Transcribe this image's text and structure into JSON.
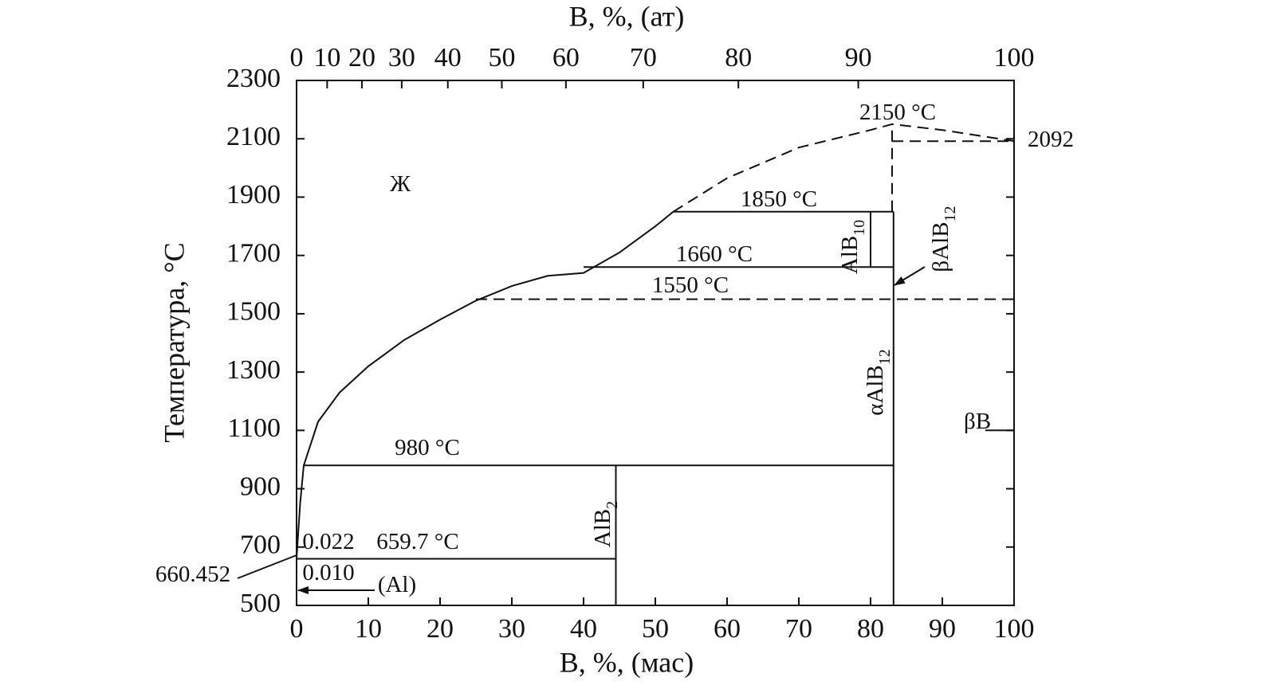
{
  "chart_data": {
    "type": "line",
    "xlabel": "B, %, (мас)",
    "x2label": "B, %, (ат)",
    "ylabel": "Температура, °С",
    "xlim": [
      0,
      100
    ],
    "xticks": [
      0,
      10,
      20,
      30,
      40,
      50,
      60,
      70,
      80,
      90,
      100
    ],
    "x2ticks": [
      0,
      10,
      20,
      30,
      40,
      50,
      60,
      70,
      80,
      90,
      100
    ],
    "ylim": [
      500,
      2300
    ],
    "yticks": [
      500,
      700,
      900,
      1100,
      1300,
      1500,
      1700,
      1900,
      2100,
      2300
    ],
    "color": "#111111",
    "lines": [
      {
        "style": "solid",
        "x": [
          0,
          0.5,
          1,
          3,
          6,
          10,
          15,
          20,
          25,
          30,
          35,
          40,
          45,
          50,
          52.5
        ],
        "y": [
          660.452,
          850,
          980,
          1130,
          1230,
          1320,
          1410,
          1480,
          1545,
          1595,
          1630,
          1640,
          1710,
          1800,
          1850
        ]
      },
      {
        "style": "dashed",
        "x": [
          52.5,
          60,
          70,
          80,
          83,
          90,
          100
        ],
        "y": [
          1850,
          1965,
          2070,
          2130,
          2150,
          2130,
          2092
        ]
      },
      {
        "style": "solid",
        "x": [
          1,
          83.2
        ],
        "y": [
          980,
          980
        ]
      },
      {
        "style": "solid",
        "x": [
          0,
          44.5
        ],
        "y": [
          659.7,
          659.7
        ]
      },
      {
        "style": "solid",
        "x": [
          44.5,
          44.5
        ],
        "y": [
          500,
          980
        ]
      },
      {
        "style": "solid",
        "x": [
          83.2,
          83.2
        ],
        "y": [
          500,
          1850
        ]
      },
      {
        "style": "solid",
        "x": [
          40,
          83.2
        ],
        "y": [
          1660,
          1660
        ]
      },
      {
        "style": "solid",
        "x": [
          52.5,
          83.2
        ],
        "y": [
          1850,
          1850
        ]
      },
      {
        "style": "solid",
        "x": [
          80,
          80
        ],
        "y": [
          1660,
          1850
        ]
      },
      {
        "style": "dashed",
        "x": [
          25,
          100
        ],
        "y": [
          1550,
          1550
        ]
      },
      {
        "style": "dashed",
        "x": [
          83,
          83
        ],
        "y": [
          1850,
          2150
        ]
      },
      {
        "style": "dashed",
        "x": [
          83,
          100
        ],
        "y": [
          2092,
          2092
        ]
      },
      {
        "style": "solid",
        "x": [
          96,
          100
        ],
        "y": [
          1100,
          1100
        ]
      }
    ],
    "annotations": [
      {
        "text": "Ж"
      },
      {
        "text": "2150 °C"
      },
      {
        "text": "2092"
      },
      {
        "text": "1850 °C"
      },
      {
        "text": "1660 °C"
      },
      {
        "text": "1550 °C"
      },
      {
        "text": "980 °C"
      },
      {
        "text": "0.022"
      },
      {
        "text": "659.7 °C"
      },
      {
        "text": "0.010"
      },
      {
        "text": "(Al)"
      },
      {
        "text": "660.452"
      },
      {
        "text": "βB"
      },
      {
        "text": "AlB",
        "sub": "10"
      },
      {
        "text": "βAlB",
        "sub": "12"
      },
      {
        "text": "αAlB",
        "sub": "12"
      },
      {
        "text": "AlB",
        "sub": "2"
      }
    ]
  }
}
